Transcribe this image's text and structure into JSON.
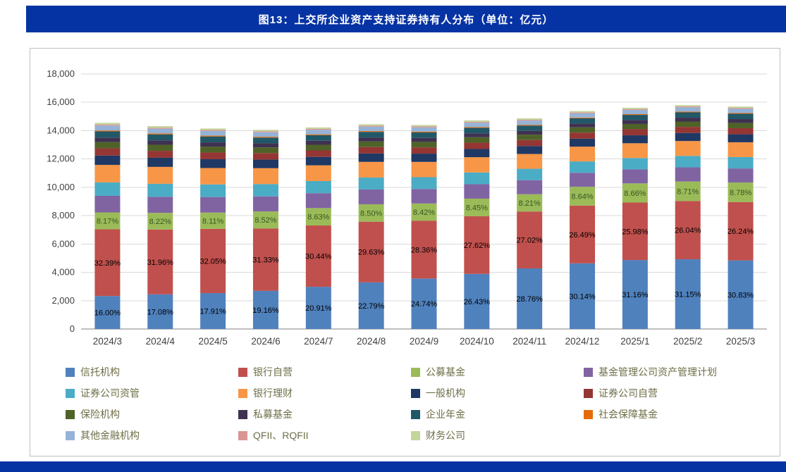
{
  "header": {
    "title": "图13：上交所企业资产支持证券持有人分布（单位：亿元）"
  },
  "colors": {
    "title_bar_bg": "#0633a3",
    "title_text": "#ffffff",
    "bottom_bar_bg": "#0633a3",
    "axis_text": "#404040",
    "legend_text": "#6f6f49",
    "gridline": "#d9d9d9",
    "axis_line": "#808080",
    "card_border": "#bfbfbf"
  },
  "chart_data": {
    "type": "bar",
    "stacked": true,
    "title": "图13：上交所企业资产支持证券持有人分布（单位：亿元）",
    "unit": "亿元",
    "ylim": [
      0,
      18000
    ],
    "ytick_interval": 2000,
    "yticklabels": [
      "0",
      "2,000",
      "4,000",
      "6,000",
      "8,000",
      "10,000",
      "12,000",
      "14,000",
      "16,000",
      "18,000"
    ],
    "categories": [
      "2024/3",
      "2024/4",
      "2024/5",
      "2024/6",
      "2024/7",
      "2024/8",
      "2024/9",
      "2024/10",
      "2024/11",
      "2024/12",
      "2025/1",
      "2025/2",
      "2025/3"
    ],
    "totals": [
      14550,
      14320,
      14150,
      14060,
      14230,
      14450,
      14400,
      14720,
      14870,
      15380,
      15620,
      15800,
      15700
    ],
    "legend_position": "bottom",
    "grid": true,
    "series": [
      {
        "name": "信托机构",
        "color": "#4F81BD",
        "labels_shown": true,
        "label_color": "#000000",
        "pct": [
          16.0,
          17.08,
          17.91,
          19.16,
          20.91,
          22.79,
          24.74,
          26.43,
          28.76,
          30.14,
          31.16,
          31.15,
          30.83
        ]
      },
      {
        "name": "银行自营",
        "color": "#C0504D",
        "labels_shown": true,
        "label_color": "#000000",
        "pct": [
          32.39,
          31.96,
          32.05,
          31.33,
          30.44,
          29.63,
          28.36,
          27.62,
          27.02,
          26.49,
          25.98,
          26.04,
          26.24
        ]
      },
      {
        "name": "公募基金",
        "color": "#9BBB59",
        "labels_shown": true,
        "label_color": "#375623",
        "pct": [
          8.17,
          8.22,
          8.11,
          8.52,
          8.63,
          8.5,
          8.42,
          8.45,
          8.21,
          8.64,
          8.66,
          8.71,
          8.78
        ]
      },
      {
        "name": "基金管理公司资产管理计划",
        "color": "#8064A2",
        "labels_shown": false,
        "pct": [
          8.04,
          7.91,
          7.76,
          7.58,
          7.4,
          7.23,
          7.12,
          6.94,
          6.66,
          6.43,
          6.33,
          6.31,
          6.32
        ]
      },
      {
        "name": "证券公司资管",
        "color": "#4BACC6",
        "labels_shown": false,
        "pct": [
          6.52,
          6.41,
          6.29,
          6.15,
          6.0,
          5.86,
          5.77,
          5.63,
          5.4,
          5.21,
          5.13,
          5.12,
          5.12
        ]
      },
      {
        "name": "银行理财",
        "color": "#F79646",
        "labels_shown": false,
        "pct": [
          8.47,
          8.33,
          8.18,
          7.99,
          7.8,
          7.62,
          7.5,
          7.31,
          7.02,
          6.77,
          6.67,
          6.65,
          6.66
        ]
      },
      {
        "name": "一般机构",
        "color": "#1F3864",
        "labels_shown": false,
        "pct": [
          4.56,
          4.49,
          4.4,
          4.3,
          4.2,
          4.1,
          4.04,
          3.94,
          3.78,
          3.65,
          3.59,
          3.58,
          3.59
        ]
      },
      {
        "name": "证券公司自营",
        "color": "#943634",
        "labels_shown": false,
        "pct": [
          3.48,
          3.42,
          3.35,
          3.28,
          3.2,
          3.13,
          3.08,
          3.0,
          2.88,
          2.78,
          2.74,
          2.73,
          2.73
        ]
      },
      {
        "name": "保险机构",
        "color": "#4F6228",
        "labels_shown": false,
        "pct": [
          3.04,
          2.99,
          2.94,
          2.87,
          2.8,
          2.74,
          2.69,
          2.63,
          2.52,
          2.43,
          2.39,
          2.39,
          2.39
        ]
      },
      {
        "name": "私募基金",
        "color": "#3F3151",
        "labels_shown": false,
        "pct": [
          2.17,
          2.14,
          2.1,
          2.05,
          2.0,
          1.95,
          1.92,
          1.88,
          1.8,
          1.74,
          1.71,
          1.71,
          1.71
        ]
      },
      {
        "name": "企业年金",
        "color": "#215868",
        "labels_shown": false,
        "pct": [
          3.04,
          2.99,
          2.94,
          2.87,
          2.8,
          2.74,
          2.69,
          2.63,
          2.52,
          2.43,
          2.39,
          2.39,
          2.39
        ]
      },
      {
        "name": "社会保障基金",
        "color": "#E36C09",
        "labels_shown": false,
        "pct": [
          0.43,
          0.43,
          0.42,
          0.41,
          0.4,
          0.39,
          0.38,
          0.38,
          0.36,
          0.35,
          0.34,
          0.34,
          0.34
        ]
      },
      {
        "name": "其他金融机构",
        "color": "#95B3D7",
        "labels_shown": false,
        "pct": [
          2.39,
          2.35,
          2.31,
          2.25,
          2.2,
          2.15,
          2.12,
          2.06,
          1.98,
          1.91,
          1.88,
          1.88,
          1.88
        ]
      },
      {
        "name": "QFII、RQFII",
        "color": "#D99694",
        "labels_shown": false,
        "pct": [
          0.52,
          0.51,
          0.5,
          0.49,
          0.48,
          0.47,
          0.46,
          0.45,
          0.43,
          0.42,
          0.41,
          0.41,
          0.41
        ]
      },
      {
        "name": "财务公司",
        "color": "#C3D69B",
        "labels_shown": false,
        "pct": [
          0.78,
          0.77,
          0.75,
          0.74,
          0.72,
          0.7,
          0.69,
          0.68,
          0.65,
          0.63,
          0.62,
          0.61,
          0.61
        ]
      }
    ]
  }
}
